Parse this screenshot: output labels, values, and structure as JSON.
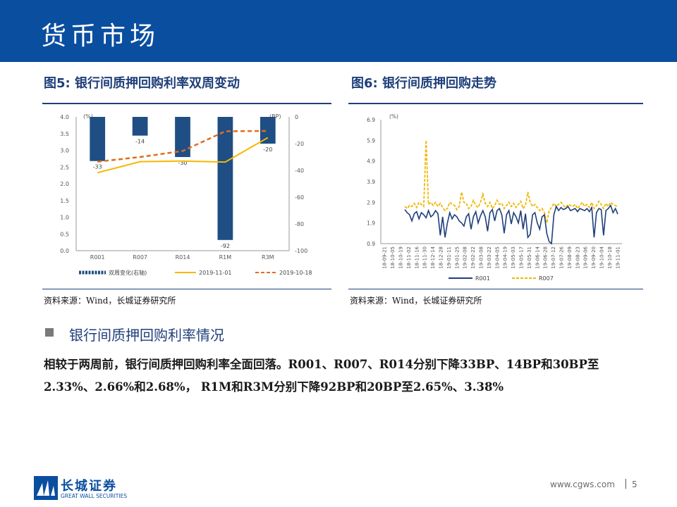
{
  "header": {
    "title": "货币市场",
    "bg_color": "#0a4ea0"
  },
  "figure5": {
    "title": "图5:  银行间质押回购利率双周变动",
    "source": "资料来源：Wind，长城证券研究所"
  },
  "figure6": {
    "title": "图6:  银行间质押回购走势",
    "source": "资料来源：Wind，长城证券研究所"
  },
  "section": {
    "title": "银行间质押回购利率情况",
    "body": "相较于两周前，银行间质押回购利率全面回落。R001、R007、R014分别下降33BP、14BP和30BP至2.33%、2.66%和2.68%， R1M和R3M分别下降92BP和20BP至2.65%、3.38%"
  },
  "footer": {
    "brand_cn": "长城证券",
    "brand_en": "GREAT WALL SECURITIES",
    "url": "www.cgws.com",
    "separator": "|",
    "page": "5"
  },
  "chart_data": [
    {
      "type": "bar",
      "categories": [
        "R001",
        "R007",
        "R014",
        "R1M",
        "R3M"
      ],
      "left_axis": {
        "unit_label": "(%)",
        "ylim": [
          0.0,
          4.0
        ],
        "ticks": [
          "0.0",
          "0.5",
          "1.0",
          "1.5",
          "2.0",
          "2.5",
          "3.0",
          "3.5",
          "4.0"
        ]
      },
      "right_axis": {
        "unit_label": "(BP)",
        "ylim": [
          -100,
          0
        ],
        "ticks": [
          "-100",
          "-80",
          "-60",
          "-40",
          "-20",
          "0"
        ]
      },
      "series": [
        {
          "name": "双周变化(右轴)",
          "kind": "bar",
          "axis": "right",
          "color": "#1f4e85",
          "values": [
            -33,
            -14,
            -30,
            -92,
            -20
          ],
          "labels": [
            "-33",
            "-14",
            "-30",
            "-92",
            "-20"
          ]
        },
        {
          "name": "2019-11-01",
          "kind": "line",
          "axis": "left",
          "color": "#f5b800",
          "values": [
            2.33,
            2.66,
            2.68,
            2.65,
            3.38
          ]
        },
        {
          "name": "2019-10-18",
          "kind": "line",
          "axis": "left",
          "dashed": true,
          "color": "#e06d1f",
          "values": [
            2.66,
            2.8,
            2.98,
            3.57,
            3.58
          ]
        }
      ],
      "legend": "bottom",
      "grid": false
    },
    {
      "type": "line",
      "y_unit_label": "(%)",
      "ylim": [
        0.9,
        6.9
      ],
      "y_ticks": [
        "0.9",
        "1.9",
        "2.9",
        "3.9",
        "4.9",
        "5.9",
        "6.9"
      ],
      "x_tick_labels": [
        "18-09-21",
        "18-10-05",
        "18-10-19",
        "18-11-02",
        "18-11-16",
        "18-11-30",
        "18-12-14",
        "18-12-28",
        "19-01-11",
        "19-01-25",
        "19-02-08",
        "19-02-22",
        "19-03-08",
        "19-03-22",
        "19-04-05",
        "19-04-19",
        "19-05-03",
        "19-05-17",
        "19-05-31",
        "19-06-14",
        "19-06-28",
        "19-07-12",
        "19-07-26",
        "19-08-09",
        "19-08-23",
        "19-09-06",
        "19-09-20",
        "19-10-04",
        "19-10-18",
        "19-11-01"
      ],
      "series": [
        {
          "name": "R001",
          "color": "#1f3f7a",
          "dashed": false,
          "values": [
            2.55,
            2.4,
            2.3,
            2.0,
            2.35,
            2.45,
            2.1,
            2.4,
            2.3,
            2.15,
            2.5,
            2.2,
            2.3,
            2.5,
            2.35,
            1.3,
            2.2,
            1.2,
            1.9,
            2.4,
            2.1,
            2.3,
            2.2,
            2.0,
            1.9,
            1.75,
            2.2,
            2.35,
            1.6,
            2.2,
            2.45,
            1.9,
            2.25,
            2.5,
            2.2,
            1.5,
            2.4,
            2.55,
            2.0,
            2.5,
            2.6,
            2.3,
            1.4,
            2.3,
            2.5,
            1.85,
            2.4,
            2.2,
            1.9,
            2.5,
            1.6,
            2.35,
            1.2,
            1.35,
            2.3,
            2.4,
            1.9,
            1.6,
            2.2,
            2.3,
            1.4,
            1.0,
            0.9,
            2.3,
            2.7,
            2.5,
            2.65,
            2.55,
            2.6,
            2.7,
            2.5,
            2.55,
            2.6,
            2.45,
            2.6,
            2.55,
            2.5,
            2.6,
            2.45,
            2.65,
            1.2,
            2.4,
            2.6,
            2.55,
            1.3,
            2.5,
            2.6,
            2.75,
            2.4,
            2.6,
            2.33
          ]
        },
        {
          "name": "R007",
          "color": "#f2b600",
          "dashed": true,
          "values": [
            2.7,
            2.6,
            2.75,
            2.7,
            2.85,
            2.65,
            2.9,
            2.8,
            2.7,
            5.9,
            2.8,
            2.9,
            2.75,
            2.9,
            2.7,
            2.85,
            2.65,
            2.5,
            2.6,
            2.9,
            2.8,
            2.75,
            2.55,
            2.7,
            3.4,
            2.9,
            2.85,
            2.6,
            2.7,
            3.0,
            2.75,
            2.65,
            2.9,
            3.3,
            2.85,
            2.7,
            2.9,
            2.6,
            2.75,
            3.0,
            2.8,
            2.85,
            2.6,
            2.75,
            2.9,
            2.7,
            2.85,
            2.65,
            2.8,
            2.95,
            2.6,
            2.75,
            3.4,
            2.9,
            2.7,
            2.8,
            2.65,
            2.5,
            2.6,
            2.4,
            1.9,
            2.5,
            2.65,
            2.85,
            2.7,
            2.8,
            2.9,
            2.75,
            2.65,
            2.8,
            2.75,
            2.7,
            2.8,
            2.6,
            2.75,
            2.9,
            2.7,
            2.8,
            2.65,
            2.9,
            2.6,
            2.75,
            2.95,
            2.8,
            2.6,
            2.85,
            2.7,
            2.9,
            2.8,
            2.75,
            2.66
          ]
        }
      ],
      "legend": "bottom",
      "grid": false
    }
  ]
}
